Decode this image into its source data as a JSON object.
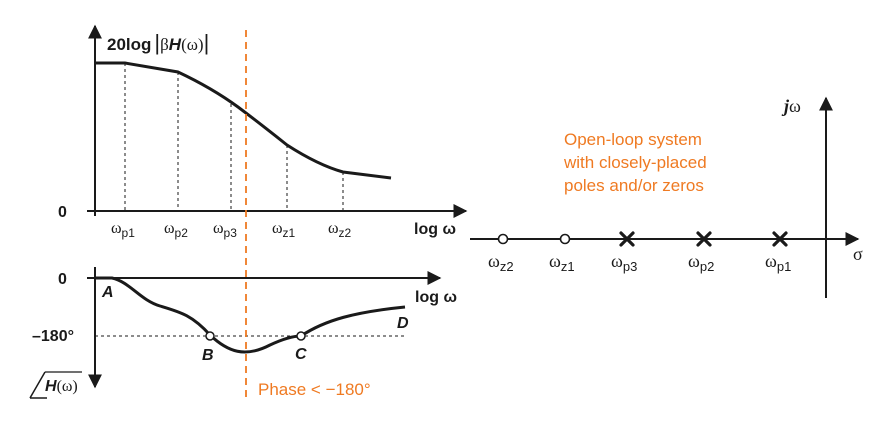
{
  "colors": {
    "ink": "#1a1a1a",
    "accent": "#ef7a22"
  },
  "magnitude_plot": {
    "y_label_prefix": "20log",
    "y_label_beta": "β",
    "y_label_H": "H",
    "y_label_omega": "(ω)",
    "zero_label": "0",
    "x_label": "log ω",
    "ticks": [
      {
        "sym": "ω",
        "sub": "p1"
      },
      {
        "sym": "ω",
        "sub": "p2"
      },
      {
        "sym": "ω",
        "sub": "p3"
      },
      {
        "sym": "ω",
        "sub": "z1"
      },
      {
        "sym": "ω",
        "sub": "z2"
      }
    ]
  },
  "phase_plot": {
    "zero_label": "0",
    "minus180_label": "–180°",
    "x_label": "log ω",
    "y_label_H": "H",
    "y_label_omega": "(ω)",
    "points": [
      "A",
      "B",
      "C",
      "D"
    ],
    "phase_note": "Phase < −180°"
  },
  "pole_zero_plot": {
    "title_lines": [
      "Open-loop system",
      "with closely-placed",
      "poles and/or zeros"
    ],
    "j_label": "j",
    "omega_label": "ω",
    "sigma_label": "σ",
    "markers": [
      {
        "kind": "zero",
        "sym": "ω",
        "sub": "z2"
      },
      {
        "kind": "zero",
        "sym": "ω",
        "sub": "z1"
      },
      {
        "kind": "pole",
        "sym": "ω",
        "sub": "p3"
      },
      {
        "kind": "pole",
        "sym": "ω",
        "sub": "p2"
      },
      {
        "kind": "pole",
        "sym": "ω",
        "sub": "p1"
      }
    ]
  }
}
